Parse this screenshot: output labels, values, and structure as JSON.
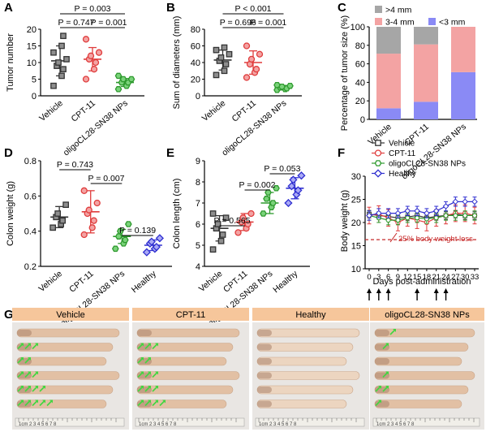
{
  "panels": {
    "A": {
      "letter": "A",
      "ylabel": "Tumor number",
      "ylim": [
        0,
        20
      ],
      "yticks": [
        "0",
        "5",
        "10",
        "15",
        "20"
      ],
      "groups": [
        "Vehicle",
        "CPT-11",
        "oligoCL28-SN38 NPs"
      ],
      "points": [
        [
          3,
          6,
          8,
          9,
          10,
          11,
          13,
          15,
          18
        ],
        [
          5,
          8,
          10,
          11,
          12,
          13,
          17
        ],
        [
          2,
          3,
          4,
          4,
          5,
          5,
          6
        ]
      ],
      "mean": [
        10.5,
        11.0,
        4.0
      ],
      "sd": [
        4.5,
        3.5,
        1.2
      ],
      "pvalues": [
        "P = 0.747",
        "P = 0.001",
        "P = 0.003"
      ]
    },
    "B": {
      "letter": "B",
      "ylabel": "Sum of diameters (mm)",
      "ylim": [
        0,
        80
      ],
      "yticks": [
        "0",
        "20",
        "40",
        "60",
        "80"
      ],
      "groups": [
        "Vehicle",
        "CPT-11",
        "oligoCL28-SN38 NPs"
      ],
      "points": [
        [
          25,
          30,
          38,
          42,
          46,
          50,
          55,
          58
        ],
        [
          22,
          28,
          32,
          38,
          44,
          50,
          60
        ],
        [
          7,
          8,
          9,
          10,
          11,
          12,
          13
        ]
      ],
      "mean": [
        43,
        40,
        10
      ],
      "sd": [
        12,
        14,
        2.5
      ],
      "pvalues": [
        "P = 0.696",
        "P = 0.001",
        "P < 0.001"
      ]
    },
    "C": {
      "letter": "C",
      "ylabel": "Percentage of tumor size (%)",
      "ylim": [
        0,
        100
      ],
      "yticks": [
        "0",
        "20",
        "40",
        "60",
        "80",
        "100"
      ],
      "groups": [
        "Vehicle",
        "CPT-11",
        "oligoCL28-SN38 NPs"
      ],
      "series": [
        {
          "name": "<3 mm",
          "color": "#8a8af5",
          "values": [
            12,
            19,
            51
          ]
        },
        {
          "name": "3-4 mm",
          "color": "#f3a3a3",
          "values": [
            59,
            62,
            49
          ]
        },
        {
          "name": ">4 mm",
          "color": "#a6a6a6",
          "values": [
            29,
            19,
            0
          ]
        }
      ]
    },
    "D": {
      "letter": "D",
      "ylabel": "Colon weight (g)",
      "ylim": [
        0.2,
        0.8
      ],
      "yticks": [
        "0.2",
        "0.4",
        "0.6",
        "0.8"
      ],
      "groups": [
        "Vehicle",
        "CPT-11",
        "oligoCL28-SN38 NPs",
        "Healthy"
      ],
      "points": [
        [
          0.42,
          0.44,
          0.46,
          0.48,
          0.5,
          0.55
        ],
        [
          0.38,
          0.42,
          0.46,
          0.5,
          0.52,
          0.56,
          0.63
        ],
        [
          0.3,
          0.33,
          0.35,
          0.37,
          0.4,
          0.44
        ],
        [
          0.28,
          0.3,
          0.31,
          0.33,
          0.34,
          0.36
        ]
      ],
      "mean": [
        0.48,
        0.51,
        0.37,
        0.32
      ],
      "sd": [
        0.06,
        0.12,
        0.04,
        0.03
      ],
      "pvalues": [
        "P = 0.743",
        "P = 0.007",
        "P = 0.139"
      ]
    },
    "E": {
      "letter": "E",
      "ylabel": "Colon length (cm)",
      "ylim": [
        4,
        9
      ],
      "yticks": [
        "4",
        "5",
        "6",
        "7",
        "8",
        "9"
      ],
      "groups": [
        "Vehicle",
        "CPT-11",
        "oligoCL28-SN38 NPs",
        "Healthy"
      ],
      "points": [
        [
          4.8,
          5.2,
          5.5,
          5.8,
          6.0,
          6.3,
          6.5
        ],
        [
          5.6,
          5.8,
          6.0,
          6.1,
          6.3,
          6.5
        ],
        [
          6.5,
          6.8,
          7.0,
          7.2,
          7.5,
          7.7
        ],
        [
          7.0,
          7.4,
          7.6,
          7.8,
          8.1,
          8.3
        ]
      ],
      "mean": [
        5.8,
        6.1,
        7.0,
        7.7
      ],
      "sd": [
        0.6,
        0.4,
        0.5,
        0.5
      ],
      "pvalues": [
        "P = 0.565",
        "P = 0.002",
        "P = 0.053"
      ]
    },
    "F": {
      "letter": "F",
      "ylabel": "Body weight (g)",
      "xlabel": "Days post-administration",
      "ylim": [
        10,
        30
      ],
      "yticks": [
        "10",
        "15",
        "20",
        "25",
        "30"
      ],
      "xlim": [
        0,
        33
      ],
      "xticks": [
        "0",
        "3",
        "6",
        "9",
        "12",
        "15",
        "18",
        "21",
        "24",
        "27",
        "30",
        "33"
      ],
      "series": [
        {
          "name": "Vehicle",
          "color": "#333333",
          "x": [
            0,
            3,
            6,
            9,
            12,
            15,
            18,
            21,
            24,
            27,
            30,
            33
          ],
          "y": [
            21.8,
            21.5,
            21.3,
            21.0,
            21.2,
            21.5,
            21.0,
            21.3,
            21.5,
            21.8,
            21.5,
            21.5
          ],
          "err": 0.8
        },
        {
          "name": "CPT-11",
          "color": "#e03c3c",
          "x": [
            0,
            3,
            6,
            9,
            12,
            15,
            18,
            21,
            24,
            27,
            30,
            33
          ],
          "y": [
            21.5,
            21.8,
            21.0,
            20.0,
            21.0,
            20.5,
            20.0,
            21.0,
            21.5,
            22.0,
            22.0,
            21.5
          ],
          "err": 1.8
        },
        {
          "name": "oligoCL28-SN38 NPs",
          "color": "#2e9a2e",
          "x": [
            0,
            3,
            6,
            9,
            12,
            15,
            18,
            21,
            24,
            27,
            30,
            33
          ],
          "y": [
            21.5,
            21.0,
            20.5,
            20.5,
            21.0,
            21.0,
            20.8,
            21.0,
            21.5,
            21.5,
            21.5,
            21.5
          ],
          "err": 1.0
        },
        {
          "name": "Healthy",
          "color": "#2f2fd0",
          "x": [
            0,
            3,
            6,
            9,
            12,
            15,
            18,
            21,
            24,
            27,
            30,
            33
          ],
          "y": [
            21.5,
            22.0,
            22.0,
            22.0,
            22.5,
            22.5,
            22.0,
            22.5,
            23.5,
            24.5,
            24.5,
            24.5
          ],
          "err": 1.0
        }
      ],
      "threshold_y": 16.3,
      "threshold_label": "25% body weight loss",
      "dose_days": [
        "0",
        "3",
        "6",
        "15",
        "21",
        "24"
      ]
    },
    "G": {
      "letter": "G",
      "labels": [
        "Vehicle",
        "CPT-11",
        "Healthy",
        "oligoCL28-SN38 NPs"
      ],
      "ruler_text": "1cm 2 3 4 5 6 7 8"
    }
  },
  "colors": {
    "vehicle": "#333333",
    "cpt11": "#e03c3c",
    "nps": "#2e9a2e",
    "healthy": "#2f2fd0",
    "label_bar": "#f6c69b",
    "arrow_green": "#41d641"
  },
  "chart_data": [
    {
      "panel": "A",
      "type": "scatter",
      "ylabel": "Tumor number",
      "ylim": [
        0,
        20
      ],
      "categories": [
        "Vehicle",
        "CPT-11",
        "oligoCL28-SN38 NPs"
      ],
      "mean": [
        10.5,
        11.0,
        4.0
      ],
      "sd": [
        4.5,
        3.5,
        1.2
      ]
    },
    {
      "panel": "B",
      "type": "scatter",
      "ylabel": "Sum of diameters (mm)",
      "ylim": [
        0,
        80
      ],
      "categories": [
        "Vehicle",
        "CPT-11",
        "oligoCL28-SN38 NPs"
      ],
      "mean": [
        43,
        40,
        10
      ],
      "sd": [
        12,
        14,
        2.5
      ]
    },
    {
      "panel": "C",
      "type": "bar",
      "ylabel": "Percentage of tumor size (%)",
      "ylim": [
        0,
        100
      ],
      "categories": [
        "Vehicle",
        "CPT-11",
        "oligoCL28-SN38 NPs"
      ],
      "series": [
        {
          "name": "<3 mm",
          "values": [
            12,
            19,
            51
          ]
        },
        {
          "name": "3-4 mm",
          "values": [
            59,
            62,
            49
          ]
        },
        {
          "name": ">4 mm",
          "values": [
            29,
            19,
            0
          ]
        }
      ]
    },
    {
      "panel": "D",
      "type": "scatter",
      "ylabel": "Colon weight (g)",
      "ylim": [
        0.2,
        0.8
      ],
      "categories": [
        "Vehicle",
        "CPT-11",
        "oligoCL28-SN38 NPs",
        "Healthy"
      ],
      "mean": [
        0.48,
        0.51,
        0.37,
        0.32
      ]
    },
    {
      "panel": "E",
      "type": "scatter",
      "ylabel": "Colon length (cm)",
      "ylim": [
        4,
        9
      ],
      "categories": [
        "Vehicle",
        "CPT-11",
        "oligoCL28-SN38 NPs",
        "Healthy"
      ],
      "mean": [
        5.8,
        6.1,
        7.0,
        7.7
      ]
    },
    {
      "panel": "F",
      "type": "line",
      "ylabel": "Body weight (g)",
      "xlabel": "Days post-administration",
      "ylim": [
        10,
        30
      ],
      "xlim": [
        0,
        33
      ]
    }
  ]
}
